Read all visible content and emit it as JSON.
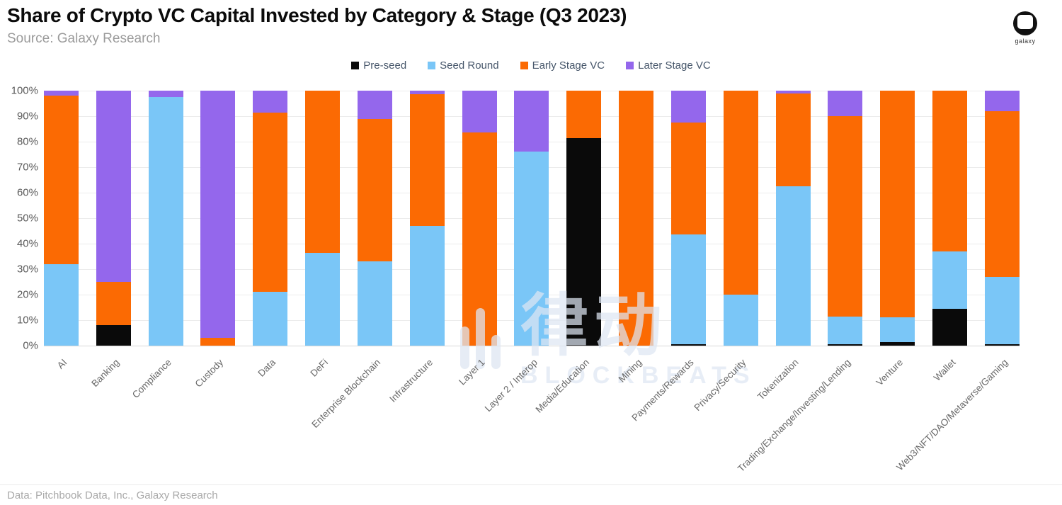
{
  "header": {
    "title": "Share of Crypto VC Capital Invested by Category & Stage (Q3 2023)",
    "source": "Source: Galaxy Research"
  },
  "logo": {
    "label": "galaxy"
  },
  "footer": {
    "credit": "Data: Pitchbook Data, Inc., Galaxy Research"
  },
  "watermark": {
    "cn": "律动",
    "en": "BLOCKBEATS"
  },
  "colors": {
    "preseed": "#0a0a0a",
    "seed": "#7ac6f7",
    "early": "#fb6a03",
    "later": "#9467ec"
  },
  "chart_data": {
    "type": "bar",
    "stacked": true,
    "title": "Share of Crypto VC Capital Invested by Category & Stage (Q3 2023)",
    "xlabel": "",
    "ylabel": "",
    "ylim": [
      0,
      100
    ],
    "ytick_step": 10,
    "ytick_suffix": "%",
    "grid": true,
    "legend_position": "top",
    "categories": [
      "AI",
      "Banking",
      "Compliance",
      "Custody",
      "Data",
      "DeFi",
      "Enterprise Blockchain",
      "Infrastructure",
      "Layer 1",
      "Layer 2 / Interop",
      "Media/Education",
      "Mining",
      "Payments/Rewards",
      "Privacy/Security",
      "Tokenization",
      "Trading/Exchange/Investing/Lending",
      "Venture",
      "Wallet",
      "Web3/NFT/DAO/Metaverse/Gaming"
    ],
    "series": [
      {
        "name": "Pre-seed",
        "color": "#0a0a0a",
        "values": [
          0,
          8,
          0,
          0,
          0,
          0,
          0,
          0,
          0,
          0,
          81.5,
          0,
          0.5,
          0,
          0,
          0.5,
          1.5,
          14.5,
          0.5
        ]
      },
      {
        "name": "Seed Round",
        "color": "#7ac6f7",
        "values": [
          32,
          0,
          97.5,
          0,
          21,
          36.5,
          33,
          47,
          0,
          76,
          0,
          0,
          43,
          20,
          62.5,
          11,
          9.5,
          22.5,
          26.5
        ]
      },
      {
        "name": "Early Stage VC",
        "color": "#fb6a03",
        "values": [
          66,
          17,
          0,
          3,
          70.5,
          63.5,
          56,
          51.5,
          83.5,
          0,
          18.5,
          100,
          44,
          80,
          36.5,
          78.5,
          89,
          63,
          65
        ]
      },
      {
        "name": "Later Stage VC",
        "color": "#9467ec",
        "values": [
          2,
          75,
          2.5,
          97,
          8.5,
          0,
          11,
          1.5,
          16.5,
          24,
          0,
          0,
          12.5,
          0,
          1,
          10,
          0,
          0,
          8
        ]
      }
    ]
  }
}
